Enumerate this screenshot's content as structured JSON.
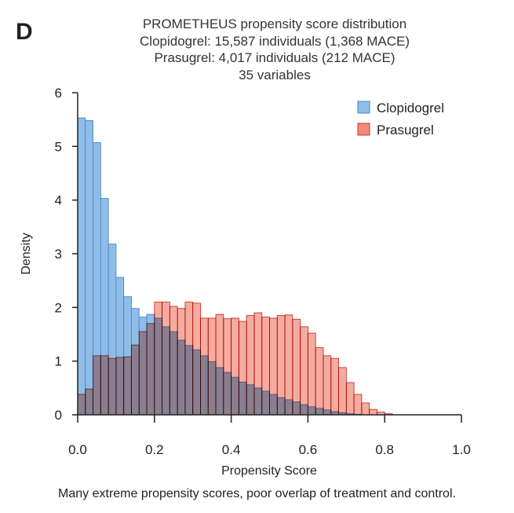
{
  "chart_data": {
    "type": "bar",
    "panel_label": "D",
    "title": "PROMETHEUS propensity score distribution",
    "subtitle_lines": [
      "Clopidogrel: 15,587 individuals (1,368 MACE)",
      "Prasugrel: 4,017 individuals (212 MACE)",
      "35 variables"
    ],
    "xlabel": "Propensity Score",
    "ylabel": "Density",
    "xlim": [
      0,
      1
    ],
    "ylim": [
      0,
      6
    ],
    "xticks": [
      "0.0",
      "0.2",
      "0.4",
      "0.6",
      "0.8",
      "1.0"
    ],
    "yticks": [
      "0",
      "1",
      "2",
      "3",
      "4",
      "5",
      "6"
    ],
    "bin_width": 0.02,
    "legend_position": "top-right",
    "series": [
      {
        "name": "Clopidogrel",
        "color": "#8fbde8",
        "stroke": "#4a87c5",
        "values": [
          5.53,
          5.48,
          5.07,
          4.03,
          3.18,
          2.56,
          2.2,
          1.98,
          1.82,
          1.87,
          1.8,
          1.64,
          1.55,
          1.39,
          1.29,
          1.21,
          1.1,
          0.99,
          0.88,
          0.79,
          0.7,
          0.61,
          0.56,
          0.5,
          0.44,
          0.38,
          0.32,
          0.28,
          0.24,
          0.19,
          0.15,
          0.12,
          0.09,
          0.06,
          0.04,
          0.02,
          0.01,
          0.0,
          0.0,
          0.0,
          0.0,
          0.0,
          0.0,
          0.0,
          0.0,
          0.0,
          0.0,
          0.0,
          0.0,
          0.0
        ]
      },
      {
        "name": "Prasugrel",
        "color": "#f28a7a",
        "stroke": "#c9332a",
        "values": [
          0.38,
          0.48,
          1.1,
          1.1,
          1.05,
          1.07,
          1.08,
          1.3,
          1.55,
          1.7,
          2.1,
          2.1,
          2.02,
          1.98,
          2.1,
          2.08,
          1.8,
          1.8,
          1.87,
          1.79,
          1.8,
          1.74,
          1.85,
          1.9,
          1.82,
          1.8,
          1.85,
          1.86,
          1.78,
          1.64,
          1.52,
          1.25,
          1.1,
          1.05,
          0.88,
          0.6,
          0.38,
          0.22,
          0.1,
          0.05,
          0.02,
          0.0,
          0.0,
          0.0,
          0.0,
          0.0,
          0.0,
          0.0,
          0.0,
          0.0
        ]
      }
    ],
    "caption": "Many extreme propensity scores, poor overlap of treatment and control."
  }
}
